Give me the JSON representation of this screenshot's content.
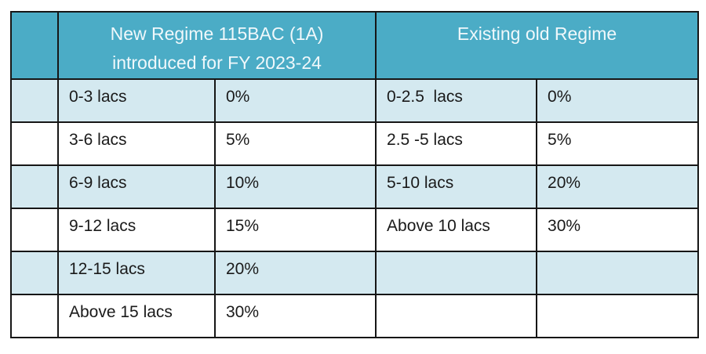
{
  "table": {
    "header": {
      "new_regime_line1": "New Regime 115BAC (1A)",
      "new_regime_line2": "introduced for FY 2023-24",
      "old_regime": "Existing old Regime"
    },
    "rows": [
      {
        "new_slab": "0-3 lacs",
        "new_rate": "0%",
        "old_slab": "0-2.5  lacs",
        "old_rate": "0%"
      },
      {
        "new_slab": "3-6 lacs",
        "new_rate": "5%",
        "old_slab": "2.5 -5 lacs",
        "old_rate": "5%"
      },
      {
        "new_slab": "6-9 lacs",
        "new_rate": "10%",
        "old_slab": "5-10 lacs",
        "old_rate": "20%"
      },
      {
        "new_slab": "9-12 lacs",
        "new_rate": "15%",
        "old_slab": "Above 10 lacs",
        "old_rate": "30%"
      },
      {
        "new_slab": "12-15 lacs",
        "new_rate": "20%",
        "old_slab": "",
        "old_rate": ""
      },
      {
        "new_slab": "Above 15 lacs",
        "new_rate": "30%",
        "old_slab": "",
        "old_rate": ""
      }
    ],
    "colors": {
      "header_bg": "#4BACC6",
      "alt_row_bg": "#D4E9F0",
      "row_bg": "#FFFFFF",
      "border": "#161616",
      "header_text": "#F0F8FB",
      "cell_text": "#1A1A1A"
    }
  }
}
